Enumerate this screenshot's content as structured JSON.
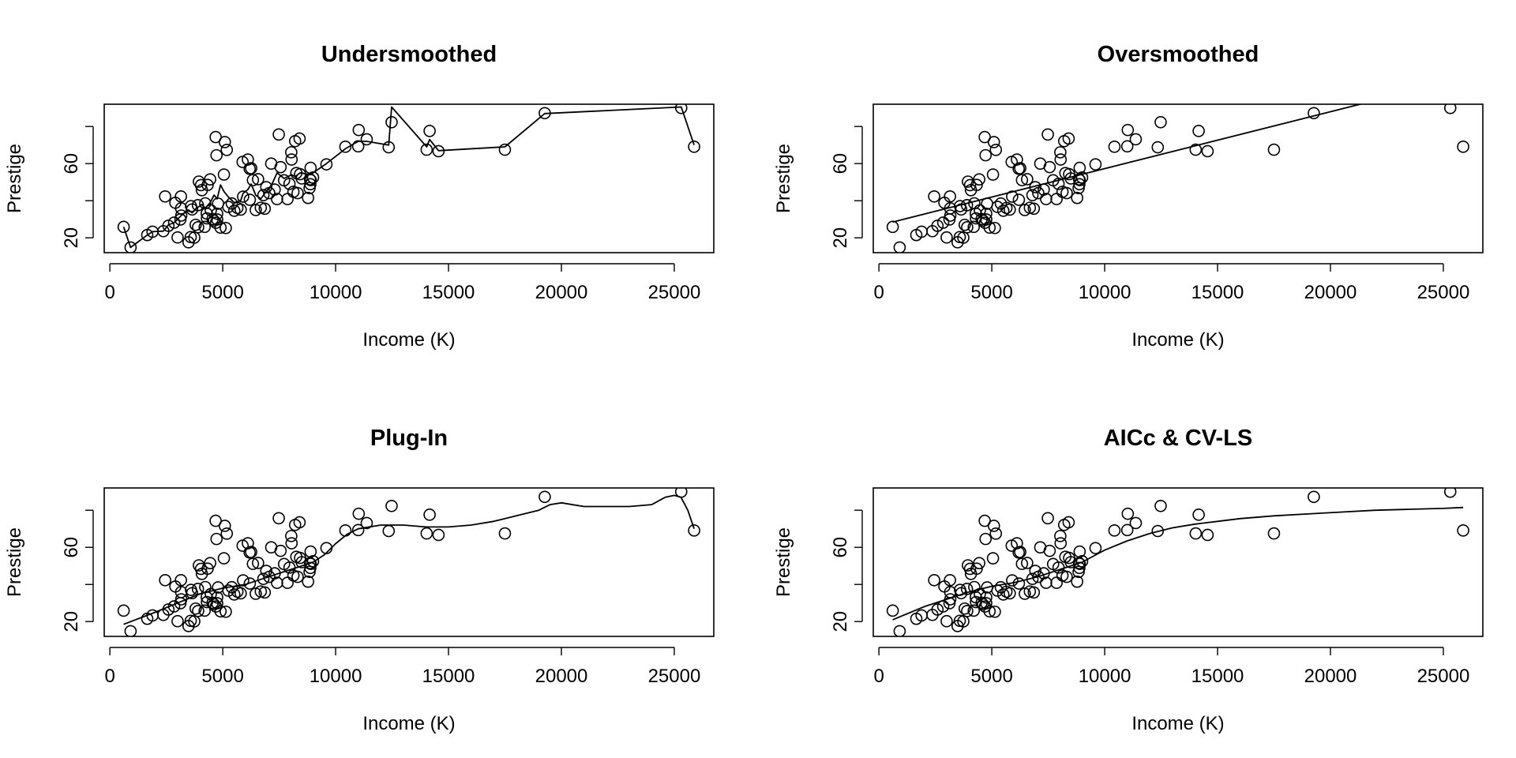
{
  "scatter_points": [
    [
      611,
      25.9
    ],
    [
      918,
      14.8
    ],
    [
      1656,
      21.5
    ],
    [
      1890,
      23.3
    ],
    [
      2370,
      23.6
    ],
    [
      2448,
      42.3
    ],
    [
      2594,
      26.5
    ],
    [
      2847,
      28.2
    ],
    [
      2901,
      38.9
    ],
    [
      3000,
      20.2
    ],
    [
      3125,
      29.9
    ],
    [
      3156,
      35.9
    ],
    [
      3161,
      32.0
    ],
    [
      3148,
      42.3
    ],
    [
      3485,
      17.6
    ],
    [
      3582,
      20.4
    ],
    [
      3593,
      37.1
    ],
    [
      3643,
      35.3
    ],
    [
      3739,
      20.1
    ],
    [
      3942,
      50.3
    ],
    [
      3910,
      25.7
    ],
    [
      3900,
      37.6
    ],
    [
      4036,
      48.4
    ],
    [
      4075,
      45.7
    ],
    [
      4199,
      25.9
    ],
    [
      4224,
      38.6
    ],
    [
      4290,
      33.1
    ],
    [
      4330,
      48.5
    ],
    [
      4443,
      51.5
    ],
    [
      4470,
      34.8
    ],
    [
      4549,
      30.1
    ],
    [
      4614,
      29.3
    ],
    [
      4686,
      74.3
    ],
    [
      4696,
      28.1
    ],
    [
      4753,
      29.9
    ],
    [
      4724,
      64.5
    ],
    [
      4793,
      38.4
    ],
    [
      4753,
      33.0
    ],
    [
      4902,
      25.5
    ],
    [
      5052,
      54.1
    ],
    [
      5092,
      71.6
    ],
    [
      5180,
      67.4
    ],
    [
      5134,
      25.3
    ],
    [
      5248,
      36.7
    ],
    [
      5511,
      34.6
    ],
    [
      5648,
      36.1
    ],
    [
      5795,
      35.2
    ],
    [
      5880,
      60.9
    ],
    [
      5902,
      42.2
    ],
    [
      6112,
      62.2
    ],
    [
      6191,
      57.2
    ],
    [
      6259,
      57.5
    ],
    [
      6336,
      51.1
    ],
    [
      6462,
      35.0
    ],
    [
      6565,
      51.6
    ],
    [
      6686,
      36.2
    ],
    [
      6860,
      35.7
    ],
    [
      6928,
      47.3
    ],
    [
      7059,
      44.1
    ],
    [
      7147,
      60.0
    ],
    [
      7405,
      40.9
    ],
    [
      7482,
      75.7
    ],
    [
      7562,
      58.1
    ],
    [
      7716,
      51.0
    ],
    [
      7869,
      40.9
    ],
    [
      7956,
      49.1
    ],
    [
      8034,
      66.1
    ],
    [
      8049,
      62.2
    ],
    [
      8131,
      44.8
    ],
    [
      8206,
      72.1
    ],
    [
      8258,
      54.9
    ],
    [
      8316,
      44.1
    ],
    [
      8403,
      73.5
    ],
    [
      8425,
      54.3
    ],
    [
      8780,
      41.5
    ],
    [
      8845,
      46.8
    ],
    [
      8865,
      51.5
    ],
    [
      8880,
      48.9
    ],
    [
      8895,
      51.1
    ],
    [
      8891,
      57.7
    ],
    [
      9593,
      59.6
    ],
    [
      10432,
      69.1
    ],
    [
      11000,
      69.3
    ],
    [
      11023,
      78.1
    ],
    [
      11377,
      73.1
    ],
    [
      12351,
      68.8
    ],
    [
      12480,
      82.3
    ],
    [
      14032,
      67.5
    ],
    [
      14163,
      77.6
    ],
    [
      14558,
      66.7
    ],
    [
      17498,
      67.5
    ],
    [
      19263,
      87.2
    ],
    [
      25308,
      90.0
    ],
    [
      25879,
      69.1
    ],
    [
      8500,
      52.0
    ],
    [
      6200,
      40.5
    ],
    [
      7300,
      46.0
    ],
    [
      5400,
      38.5
    ],
    [
      4300,
      30.5
    ],
    [
      3800,
      27.0
    ],
    [
      9000,
      52.5
    ],
    [
      6800,
      43.0
    ]
  ],
  "panels": [
    {
      "title": "Undersmoothed",
      "xlabel": "Income (K)",
      "ylabel": "Prestige",
      "xticks": [
        "0",
        "5000",
        "10000",
        "15000",
        "20000",
        "25000"
      ],
      "yticks": [
        "20",
        "60"
      ],
      "fit": {
        "x": [
          611,
          918,
          1656,
          1890,
          2370,
          2594,
          2847,
          3000,
          3156,
          3485,
          3643,
          3910,
          4075,
          4224,
          4443,
          4614,
          4753,
          4902,
          5052,
          5248,
          5511,
          5795,
          5902,
          6112,
          6259,
          6462,
          6686,
          6928,
          7147,
          7405,
          7716,
          8049,
          8206,
          8425,
          8880,
          9593,
          10432,
          11000,
          11377,
          12351,
          12480,
          14032,
          14163,
          14558,
          17498,
          19263,
          25308,
          25879
        ],
        "y": [
          25.9,
          14.8,
          21.5,
          23.3,
          23.6,
          27.0,
          28.2,
          30.0,
          32.0,
          35.0,
          33.5,
          36.5,
          38.0,
          36.0,
          39.0,
          43.0,
          41.0,
          48.5,
          45.0,
          42.0,
          39.0,
          40.0,
          44.0,
          46.0,
          49.0,
          43.0,
          41.0,
          45.0,
          48.0,
          55.0,
          52.0,
          54.0,
          53.0,
          55.0,
          54.0,
          60.0,
          68.0,
          72.0,
          72.0,
          70.0,
          90.5,
          69.0,
          73.0,
          67.0,
          69.0,
          87.0,
          90.5,
          70.0
        ]
      }
    },
    {
      "title": "Oversmoothed",
      "xlabel": "Income (K)",
      "ylabel": "Prestige",
      "xticks": [
        "0",
        "5000",
        "10000",
        "15000",
        "20000",
        "25000"
      ],
      "yticks": [
        "20",
        "60"
      ],
      "fit": {
        "x": [
          611,
          21800
        ],
        "y": [
          28.5,
          93.5
        ]
      }
    },
    {
      "title": "Plug-In",
      "xlabel": "Income (K)",
      "ylabel": "Prestige",
      "xticks": [
        "0",
        "5000",
        "10000",
        "15000",
        "20000",
        "25000"
      ],
      "yticks": [
        "20",
        "60"
      ],
      "fit": {
        "x": [
          611,
          2000,
          3000,
          4000,
          5000,
          6000,
          7000,
          8000,
          9000,
          9500,
          10000,
          10500,
          11000,
          12000,
          13000,
          14000,
          15000,
          16000,
          17000,
          18000,
          19000,
          19500,
          20000,
          21000,
          22000,
          23000,
          24000,
          24600,
          25000,
          25300,
          25600,
          25879
        ],
        "y": [
          18.5,
          25.0,
          30.0,
          35.0,
          38.0,
          40.0,
          44.0,
          48.0,
          52.0,
          56.0,
          62.0,
          67.0,
          70.0,
          72.0,
          72.0,
          71.0,
          71.0,
          72.0,
          74.0,
          77.0,
          80.0,
          83.0,
          84.0,
          82.0,
          82.0,
          82.0,
          83.0,
          87.0,
          88.0,
          87.0,
          80.0,
          70.0
        ]
      }
    },
    {
      "title": "AICc & CV-LS",
      "xlabel": "Income (K)",
      "ylabel": "Prestige",
      "xticks": [
        "0",
        "5000",
        "10000",
        "15000",
        "20000",
        "25000"
      ],
      "yticks": [
        "20",
        "60"
      ],
      "fit": {
        "x": [
          611,
          2000,
          3000,
          4000,
          5000,
          6000,
          7000,
          8000,
          9000,
          10000,
          11000,
          12000,
          13000,
          14000,
          15000,
          16000,
          17500,
          19000,
          20500,
          22000,
          23500,
          25000,
          25879
        ],
        "y": [
          21.0,
          28.0,
          32.0,
          36.0,
          39.0,
          41.0,
          44.0,
          48.0,
          52.0,
          58.5,
          63.5,
          67.5,
          70.5,
          72.5,
          74.0,
          75.5,
          77.0,
          78.0,
          79.0,
          80.0,
          80.5,
          81.0,
          81.5
        ]
      }
    }
  ],
  "chart_data": [
    {
      "type": "scatter",
      "title": "Undersmoothed",
      "xlabel": "Income (K)",
      "ylabel": "Prestige",
      "xlim": [
        -250,
        26750
      ],
      "ylim": [
        12,
        92
      ],
      "grid": false
    },
    {
      "type": "scatter",
      "title": "Oversmoothed",
      "xlabel": "Income (K)",
      "ylabel": "Prestige",
      "xlim": [
        -250,
        26750
      ],
      "ylim": [
        12,
        92
      ],
      "grid": false
    },
    {
      "type": "scatter",
      "title": "Plug-In",
      "xlabel": "Income (K)",
      "ylabel": "Prestige",
      "xlim": [
        -250,
        26750
      ],
      "ylim": [
        12,
        92
      ],
      "grid": false
    },
    {
      "type": "scatter",
      "title": "AICc & CV-LS",
      "xlabel": "Income (K)",
      "ylabel": "Prestige",
      "xlim": [
        -250,
        26750
      ],
      "ylim": [
        12,
        92
      ],
      "grid": false
    }
  ]
}
